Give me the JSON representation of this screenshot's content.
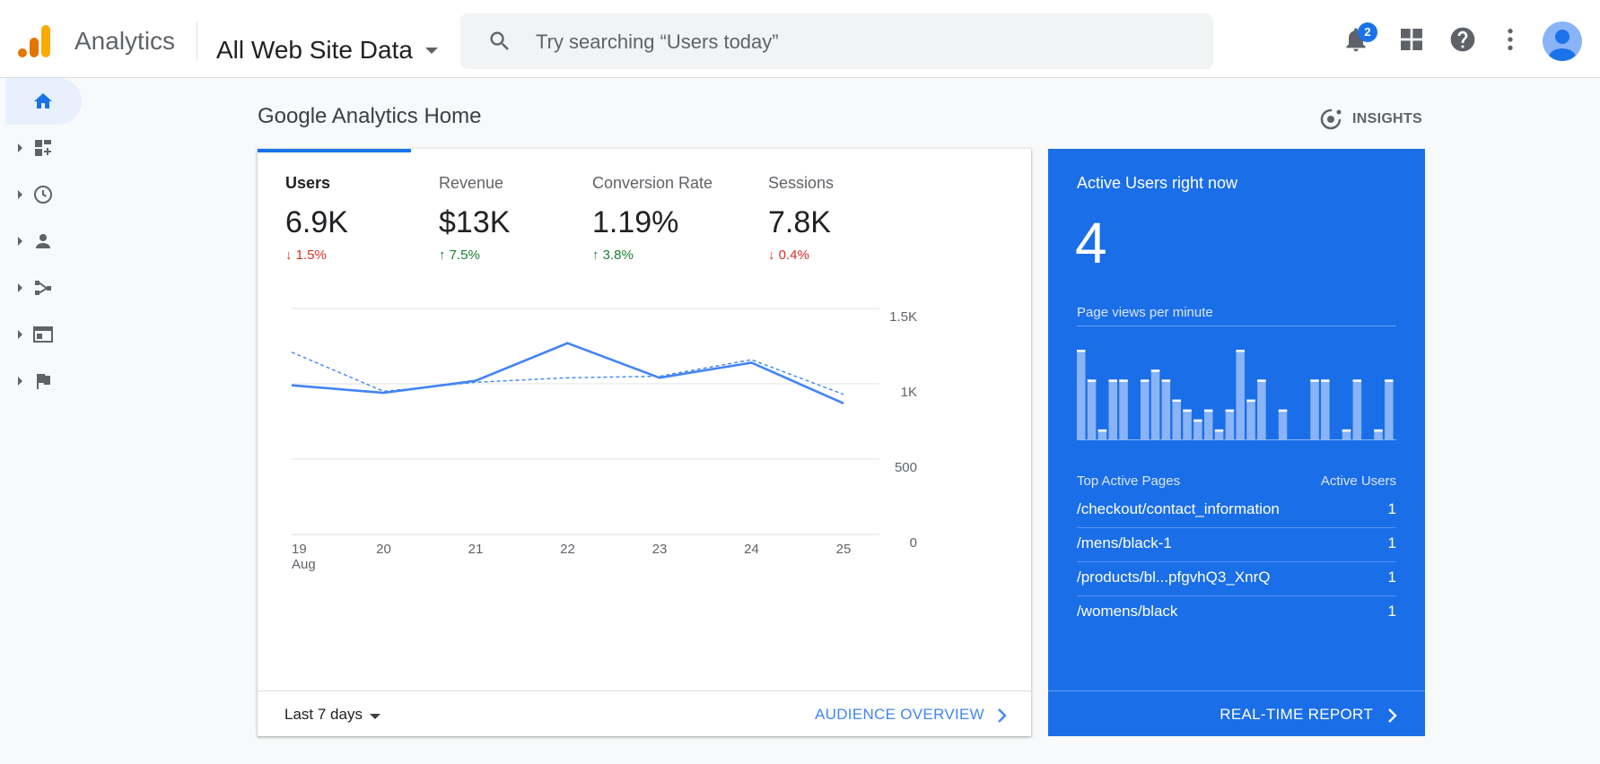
{
  "header": {
    "app_name": "Analytics",
    "property": "All Web Site Data",
    "search_placeholder": "Try searching “Users today”",
    "notification_count": "2",
    "icons": [
      "notifications-icon",
      "apps-grid-icon",
      "help-icon",
      "more-vert-icon",
      "account-avatar"
    ]
  },
  "sidebar": {
    "items": [
      "home-icon",
      "customization-icon",
      "realtime-clock-icon",
      "audience-person-icon",
      "acquisition-icon",
      "behavior-icon",
      "conversions-flag-icon"
    ]
  },
  "page": {
    "title": "Google Analytics Home",
    "insights_label": "INSIGHTS"
  },
  "metrics": [
    {
      "label": "Users",
      "value": "6.9K",
      "delta": "1.5%",
      "direction": "down"
    },
    {
      "label": "Revenue",
      "value": "$13K",
      "delta": "7.5%",
      "direction": "up"
    },
    {
      "label": "Conversion Rate",
      "value": "1.19%",
      "delta": "3.8%",
      "direction": "up"
    },
    {
      "label": "Sessions",
      "value": "7.8K",
      "delta": "0.4%",
      "direction": "down"
    }
  ],
  "chart_data": {
    "type": "line",
    "categories": [
      "19",
      "20",
      "21",
      "22",
      "23",
      "24",
      "25"
    ],
    "x_sub_label": "Aug",
    "y_ticks": [
      "0",
      "500",
      "1K",
      "1.5K"
    ],
    "ylim": [
      0,
      1500
    ],
    "series": [
      {
        "style": "solid",
        "values": [
          990,
          940,
          1020,
          1270,
          1040,
          1140,
          870
        ]
      },
      {
        "style": "dashed",
        "values": [
          1210,
          950,
          1010,
          1040,
          1050,
          1160,
          930
        ]
      }
    ],
    "colors": {
      "line": "#4285f4",
      "grid": "#e0e0e0"
    }
  },
  "card_footer": {
    "range_label": "Last 7 days",
    "link_label": "AUDIENCE OVERVIEW"
  },
  "realtime": {
    "title": "Active Users right now",
    "count": "4",
    "pageviews_label": "Page views per minute",
    "bars": [
      9,
      6,
      1,
      6,
      6,
      0,
      6,
      7,
      6,
      4,
      3,
      2,
      3,
      1,
      3,
      9,
      4,
      6,
      0,
      3,
      0,
      0,
      6,
      6,
      0,
      1,
      6,
      0,
      1,
      6
    ],
    "table_head_left": "Top Active Pages",
    "table_head_right": "Active Users",
    "rows": [
      {
        "page": "/checkout/contact_information",
        "users": "1"
      },
      {
        "page": "/mens/black-1",
        "users": "1"
      },
      {
        "page": "/products/bl...pfgvhQ3_XnrQ",
        "users": "1"
      },
      {
        "page": "/womens/black",
        "users": "1"
      }
    ],
    "footer_link": "REAL-TIME REPORT",
    "color": "#1a6ee8"
  }
}
